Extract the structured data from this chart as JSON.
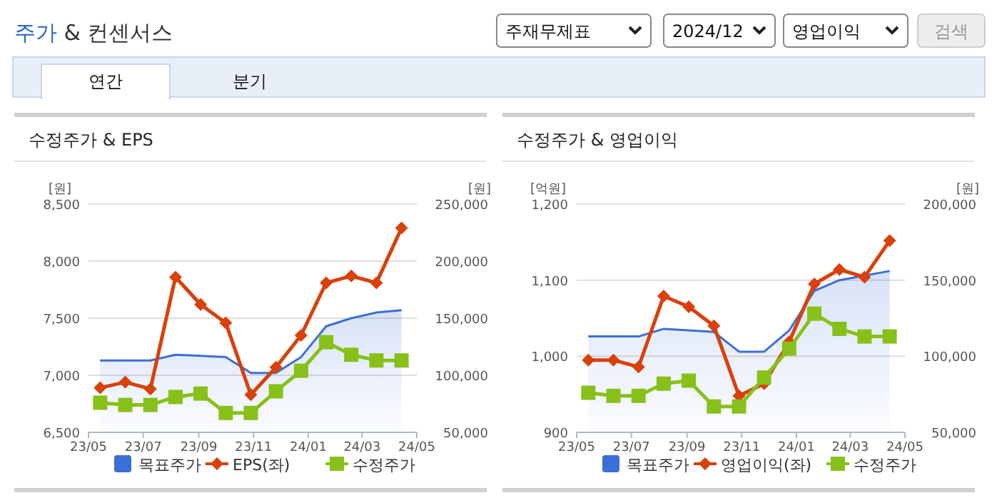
{
  "chart_data": [
    {
      "type": "other",
      "title": "주가 & 컨센서스",
      "annotations": [
        "주재무제표",
        "2024/12",
        "영업이익",
        "검색",
        "연간",
        "분기"
      ]
    },
    {
      "type": "line",
      "title": "수정주가 & EPS",
      "ylabel": "[원]",
      "y2label": "[원]",
      "x": [
        "2023-05-14",
        "2023-06-11",
        "2023-07-09",
        "2023-08-06",
        "2023-09-03",
        "2023-10-01",
        "2023-10-29",
        "2023-11-26",
        "2023-12-24",
        "2024-01-21",
        "2024-02-18",
        "2024-03-17",
        "2024-04-14"
      ],
      "xlim": [
        "2023-05-01",
        "2024-05-01"
      ],
      "xticks": [
        {
          "value": "2023-05-01",
          "label": "23/05"
        },
        {
          "value": "2023-07-01",
          "label": "23/07"
        },
        {
          "value": "2023-09-01",
          "label": "23/09"
        },
        {
          "value": "2023-11-01",
          "label": "23/11"
        },
        {
          "value": "2024-01-01",
          "label": "24/01"
        },
        {
          "value": "2024-03-01",
          "label": "24/03"
        },
        {
          "value": "2024-05-01",
          "label": "24/05"
        }
      ],
      "ylim": [
        6500,
        8500
      ],
      "yticks": [
        {
          "value": 6500,
          "label": "6,500"
        },
        {
          "value": 7000,
          "label": "7,000"
        },
        {
          "value": 7500,
          "label": "7,500"
        },
        {
          "value": 8000,
          "label": "8,000"
        },
        {
          "value": 8500,
          "label": "8,500"
        }
      ],
      "y2lim": [
        50000,
        250000
      ],
      "y2ticks": [
        {
          "value": 50000,
          "label": "50,000"
        },
        {
          "value": 100000,
          "label": "100,000"
        },
        {
          "value": 150000,
          "label": "150,000"
        },
        {
          "value": 200000,
          "label": "200,000"
        },
        {
          "value": 250000,
          "label": "250,000"
        }
      ],
      "grid": "y",
      "legend": "bottom",
      "series": [
        {
          "name": "목표주가",
          "type": "area",
          "axis": "y2",
          "color": "#3a6fd8",
          "values": [
            113000,
            113000,
            113000,
            118000,
            117000,
            116000,
            102000,
            102000,
            116000,
            143000,
            150000,
            155000,
            157000
          ]
        },
        {
          "name": "EPS(좌)",
          "type": "line",
          "marker": "diamond",
          "color": "#d9400a",
          "values": [
            6890,
            6940,
            6880,
            7860,
            7620,
            7460,
            6830,
            7070,
            7350,
            7810,
            7870,
            7810,
            8290
          ]
        },
        {
          "name": "수정주가",
          "type": "line",
          "axis": "y2",
          "marker": "square",
          "color": "#88c01a",
          "values": [
            76000,
            74000,
            74000,
            81000,
            84000,
            67000,
            67000,
            86000,
            104000,
            129000,
            118000,
            113000,
            113000
          ]
        }
      ]
    },
    {
      "type": "line",
      "title": "수정주가 & 영업이익",
      "ylabel": "[억원]",
      "y2label": "[원]",
      "x": [
        "2023-05-14",
        "2023-06-11",
        "2023-07-09",
        "2023-08-06",
        "2023-09-03",
        "2023-10-01",
        "2023-10-29",
        "2023-11-26",
        "2023-12-24",
        "2024-01-21",
        "2024-02-18",
        "2024-03-17",
        "2024-04-14"
      ],
      "xlim": [
        "2023-05-01",
        "2024-05-01"
      ],
      "xticks": [
        {
          "value": "2023-05-01",
          "label": "23/05"
        },
        {
          "value": "2023-07-01",
          "label": "23/07"
        },
        {
          "value": "2023-09-01",
          "label": "23/09"
        },
        {
          "value": "2023-11-01",
          "label": "23/11"
        },
        {
          "value": "2024-01-01",
          "label": "24/01"
        },
        {
          "value": "2024-03-01",
          "label": "24/03"
        },
        {
          "value": "2024-05-01",
          "label": "24/05"
        }
      ],
      "ylim": [
        900,
        1200
      ],
      "yticks": [
        900,
        {
          "value": 1000,
          "label": "1,000"
        },
        {
          "value": 1100,
          "label": "1,100"
        },
        {
          "value": 1200,
          "label": "1,200"
        }
      ],
      "y2lim": [
        50000,
        200000
      ],
      "y2ticks": [
        {
          "value": 50000,
          "label": "50,000"
        },
        {
          "value": 100000,
          "label": "100,000"
        },
        {
          "value": 150000,
          "label": "150,000"
        },
        {
          "value": 200000,
          "label": "200,000"
        }
      ],
      "grid": "y",
      "legend": "bottom",
      "series": [
        {
          "name": "목표주가",
          "type": "area",
          "axis": "y2",
          "color": "#3a6fd8",
          "values": [
            113000,
            113000,
            113000,
            118000,
            117000,
            116000,
            103000,
            103000,
            117000,
            143000,
            150000,
            153000,
            156000
          ]
        },
        {
          "name": "영업이익(좌)",
          "type": "line",
          "marker": "diamond",
          "color": "#d9400a",
          "values": [
            995,
            995,
            986,
            1079,
            1065,
            1040,
            948,
            964,
            1019,
            1095,
            1114,
            1104,
            1152
          ]
        },
        {
          "name": "수정주가",
          "type": "line",
          "axis": "y2",
          "marker": "square",
          "color": "#88c01a",
          "values": [
            76000,
            74000,
            74000,
            82000,
            84000,
            67000,
            67000,
            86000,
            105000,
            128000,
            118000,
            113000,
            113000
          ]
        }
      ]
    }
  ]
}
